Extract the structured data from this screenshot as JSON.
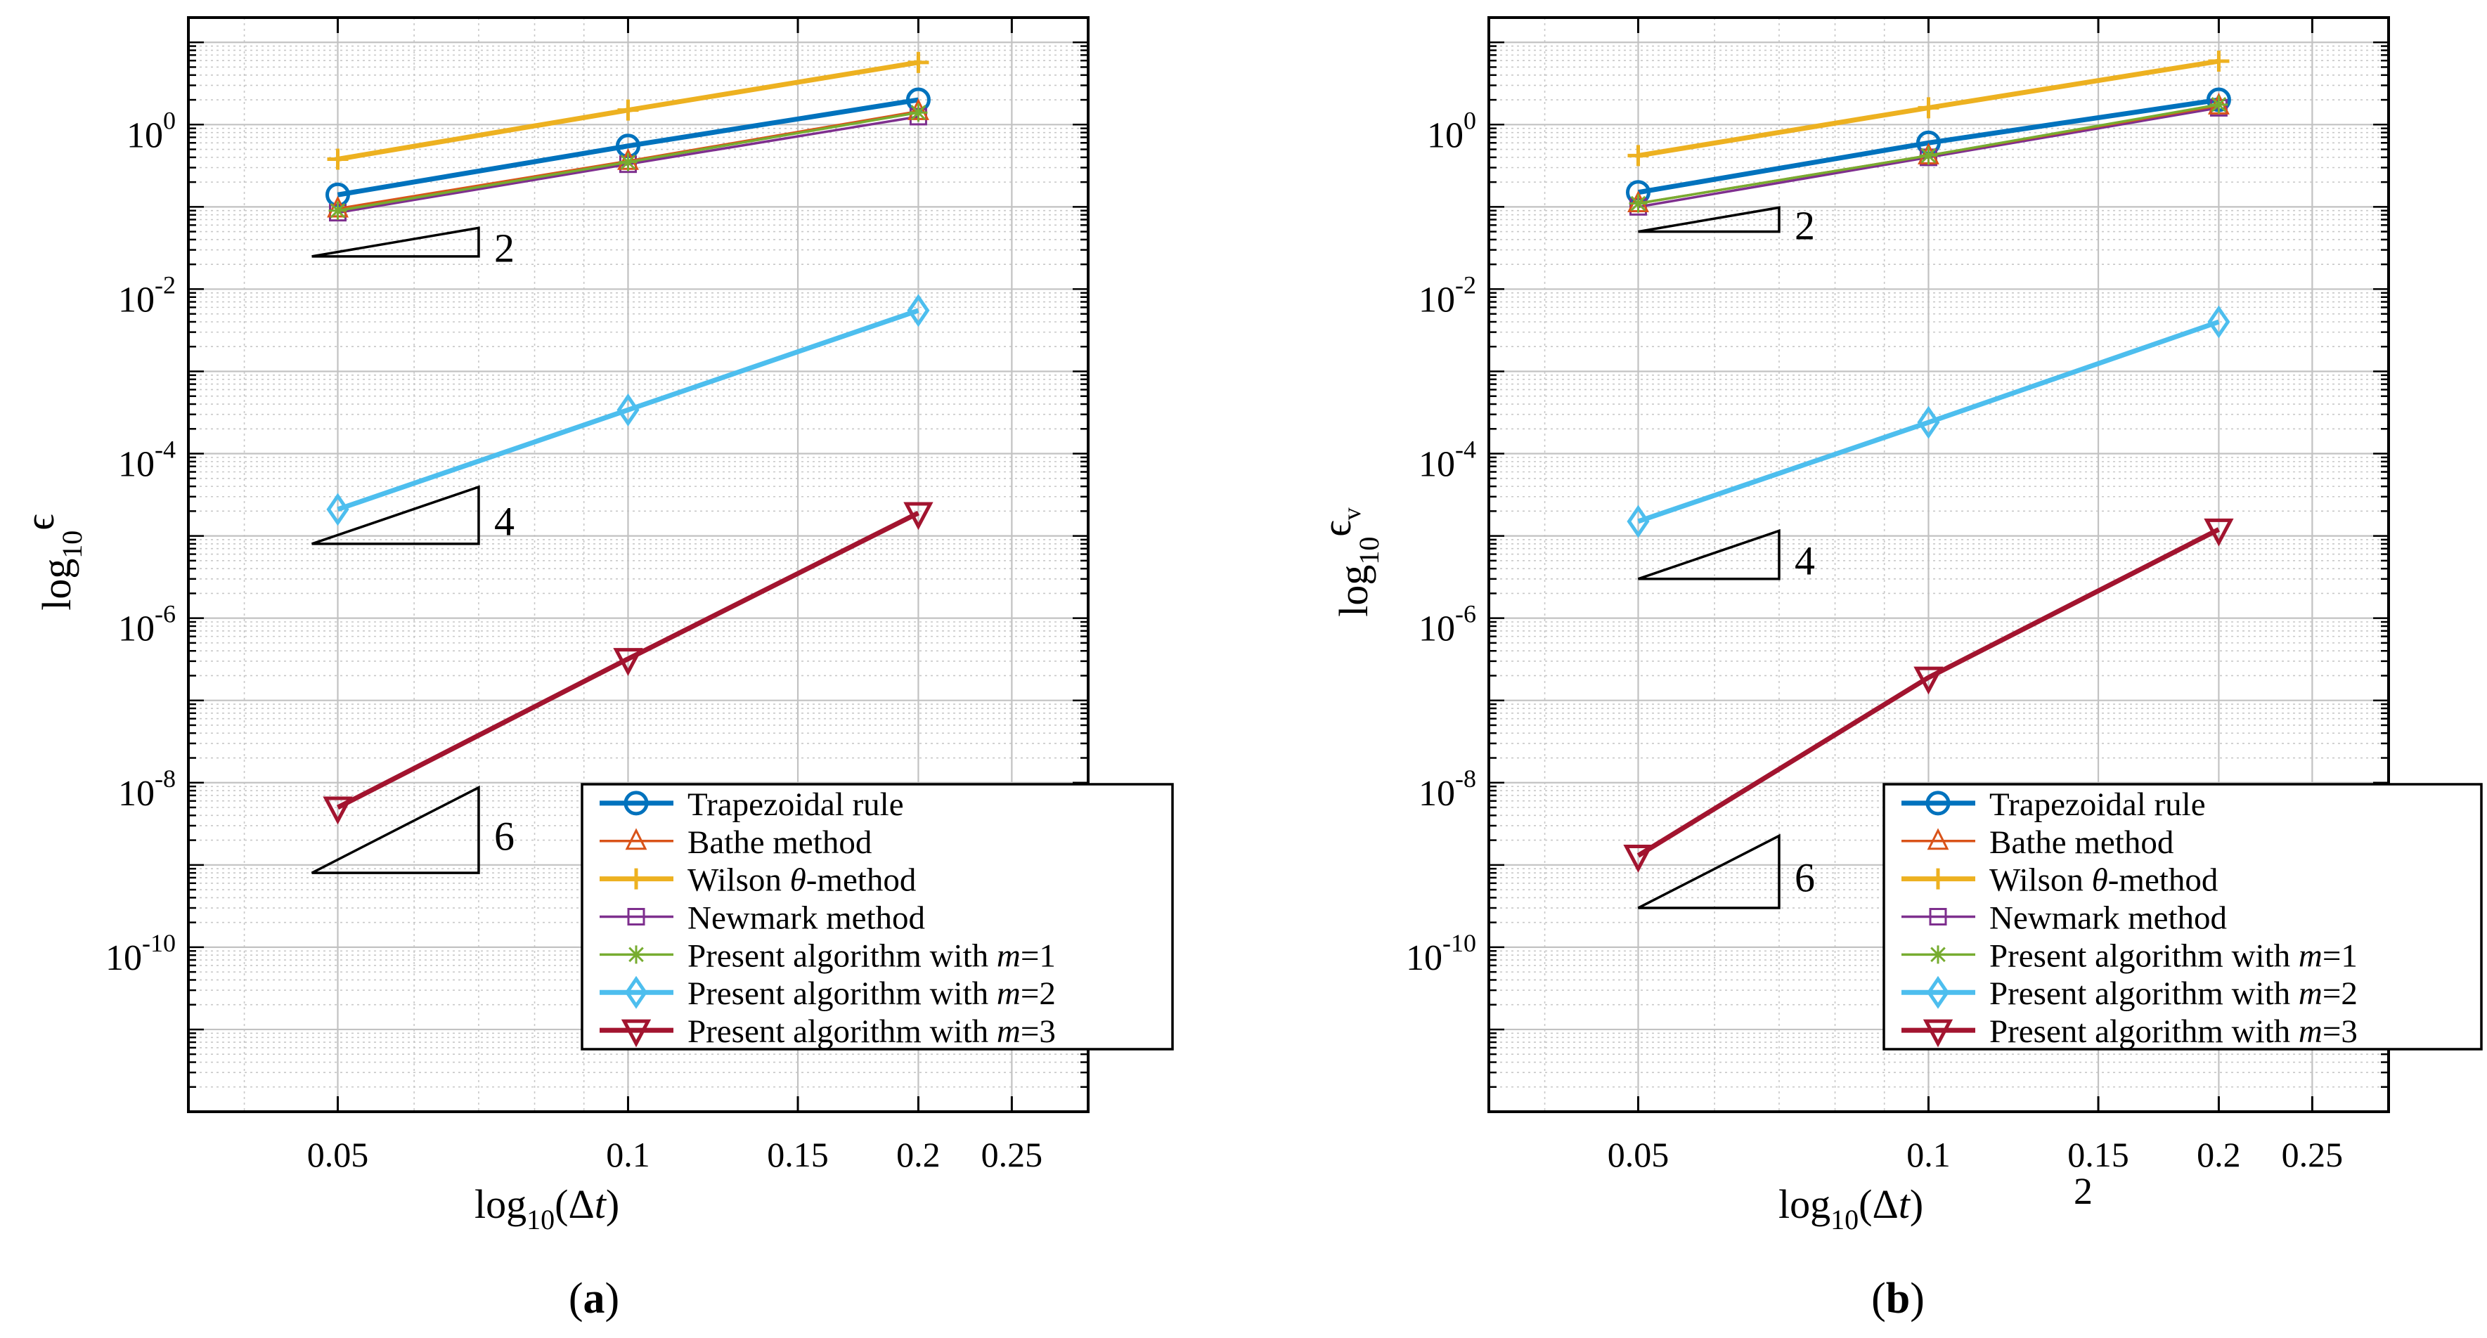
{
  "chart_data": [
    {
      "type": "line",
      "panel_label": "(a)",
      "panel_label_parts": [
        "(",
        "a",
        ")"
      ],
      "xlabel": "log10(Δt)",
      "xlabel_parts": [
        "log",
        "10",
        "(Δ",
        "t",
        ")"
      ],
      "ylabel": "log10ϵ",
      "ylabel_parts": [
        "log",
        "10",
        "ϵ",
        ""
      ],
      "x_scale": "log",
      "y_scale": "log",
      "xlim": [
        0.035,
        0.3
      ],
      "ylim": [
        1e-12,
        20
      ],
      "x_ticks": [
        0.05,
        0.1,
        0.15,
        0.2,
        0.25
      ],
      "x_tick_labels": [
        "0.05",
        "0.1",
        "0.15",
        "0.2",
        "0.25"
      ],
      "y_ticks": [
        {
          "value": 1,
          "base": "10",
          "exp": "0"
        },
        {
          "value": 0.01,
          "base": "10",
          "exp": "-2"
        },
        {
          "value": 0.0001,
          "base": "10",
          "exp": "-4"
        },
        {
          "value": 1e-06,
          "base": "10",
          "exp": "-6"
        },
        {
          "value": 1e-08,
          "base": "10",
          "exp": "-8"
        },
        {
          "value": 1e-10,
          "base": "10",
          "exp": "-10"
        }
      ],
      "grid": true,
      "x": [
        0.05,
        0.1,
        0.2
      ],
      "series": [
        {
          "name": "Trapezoidal rule",
          "values": [
            0.14,
            0.55,
            2.0
          ],
          "color": "#0072BD",
          "marker": "circle",
          "width": "thick"
        },
        {
          "name": "Bathe method",
          "values": [
            0.095,
            0.36,
            1.45
          ],
          "color": "#D95319",
          "marker": "triangle",
          "width": "thin"
        },
        {
          "name": "Wilson θ-method",
          "values": [
            0.38,
            1.5,
            5.7
          ],
          "color": "#EDB120",
          "marker": "plus",
          "width": "thick"
        },
        {
          "name": "Newmark method",
          "values": [
            0.085,
            0.33,
            1.25
          ],
          "color": "#7E2F8E",
          "marker": "square",
          "width": "thin"
        },
        {
          "name": "Present algorithm with m=1",
          "values": [
            0.09,
            0.35,
            1.4
          ],
          "color": "#77AC30",
          "marker": "asterisk",
          "width": "thin"
        },
        {
          "name": "Present algorithm with m=2",
          "values": [
            2.1e-05,
            0.00034,
            0.0055
          ],
          "color": "#4DBEEE",
          "marker": "diamond",
          "width": "thick"
        },
        {
          "name": "Present algorithm with m=3",
          "values": [
            5e-09,
            3.2e-07,
            1.9e-05
          ],
          "color": "#A2142F",
          "marker": "triangle-down",
          "width": "thick"
        }
      ],
      "legend": {
        "position": "bottom-right",
        "entries": [
          {
            "prefix": "Trapezoidal rule",
            "var": "",
            "suffix": ""
          },
          {
            "prefix": "Bathe method",
            "var": "",
            "suffix": ""
          },
          {
            "prefix": "Wilson  ",
            "var": "θ",
            "suffix": "-method"
          },
          {
            "prefix": "Newmark method",
            "var": "",
            "suffix": ""
          },
          {
            "prefix": "Present algorithm with ",
            "var": "m",
            "suffix": "=1"
          },
          {
            "prefix": "Present algorithm with ",
            "var": "m",
            "suffix": "=2"
          },
          {
            "prefix": "Present algorithm with ",
            "var": "m",
            "suffix": "=3"
          }
        ]
      },
      "slope_triangles": [
        {
          "label": "2",
          "x0": 0.047,
          "x1": 0.07,
          "y0": 0.025
        },
        {
          "label": "4",
          "x0": 0.047,
          "x1": 0.07,
          "y0": 8e-06
        },
        {
          "label": "6",
          "x0": 0.047,
          "x1": 0.07,
          "y0": 8e-10
        }
      ],
      "stray_labels": []
    },
    {
      "type": "line",
      "panel_label": "(b)",
      "panel_label_parts": [
        "(",
        "b",
        ")"
      ],
      "xlabel": "log10(Δt)",
      "xlabel_parts": [
        "log",
        "10",
        "(Δ",
        "t",
        ")"
      ],
      "ylabel": "log10ϵv",
      "ylabel_parts": [
        "log",
        "10",
        "ϵ",
        "v"
      ],
      "x_scale": "log",
      "y_scale": "log",
      "xlim": [
        0.035,
        0.3
      ],
      "ylim": [
        1e-12,
        20
      ],
      "x_ticks": [
        0.05,
        0.1,
        0.15,
        0.2,
        0.25
      ],
      "x_tick_labels": [
        "0.05",
        "0.1",
        "0.15",
        "0.2",
        "0.25"
      ],
      "y_ticks": [
        {
          "value": 1,
          "base": "10",
          "exp": "0"
        },
        {
          "value": 0.01,
          "base": "10",
          "exp": "-2"
        },
        {
          "value": 0.0001,
          "base": "10",
          "exp": "-4"
        },
        {
          "value": 1e-06,
          "base": "10",
          "exp": "-6"
        },
        {
          "value": 1e-08,
          "base": "10",
          "exp": "-8"
        },
        {
          "value": 1e-10,
          "base": "10",
          "exp": "-10"
        }
      ],
      "grid": true,
      "x": [
        0.05,
        0.1,
        0.2
      ],
      "series": [
        {
          "name": "Trapezoidal rule",
          "values": [
            0.15,
            0.6,
            2.0
          ],
          "color": "#0072BD",
          "marker": "circle",
          "width": "thick"
        },
        {
          "name": "Bathe method",
          "values": [
            0.11,
            0.42,
            1.7
          ],
          "color": "#D95319",
          "marker": "triangle",
          "width": "thin"
        },
        {
          "name": "Wilson θ-method",
          "values": [
            0.42,
            1.6,
            5.9
          ],
          "color": "#EDB120",
          "marker": "plus",
          "width": "thick"
        },
        {
          "name": "Newmark method",
          "values": [
            0.1,
            0.4,
            1.6
          ],
          "color": "#7E2F8E",
          "marker": "square",
          "width": "thin"
        },
        {
          "name": "Present algorithm with m=1",
          "values": [
            0.11,
            0.42,
            1.75
          ],
          "color": "#77AC30",
          "marker": "asterisk",
          "width": "thin"
        },
        {
          "name": "Present algorithm with m=2",
          "values": [
            1.5e-05,
            0.00024,
            0.004
          ],
          "color": "#4DBEEE",
          "marker": "diamond",
          "width": "thick"
        },
        {
          "name": "Present algorithm with m=3",
          "values": [
            1.3e-09,
            1.9e-07,
            1.2e-05
          ],
          "color": "#A2142F",
          "marker": "triangle-down",
          "width": "thick"
        }
      ],
      "legend": {
        "position": "bottom-right",
        "entries": [
          {
            "prefix": "Trapezoidal rule",
            "var": "",
            "suffix": ""
          },
          {
            "prefix": "Bathe method",
            "var": "",
            "suffix": ""
          },
          {
            "prefix": "Wilson  ",
            "var": "θ",
            "suffix": "-method"
          },
          {
            "prefix": "Newmark method",
            "var": "",
            "suffix": ""
          },
          {
            "prefix": "Present algorithm with ",
            "var": "m",
            "suffix": "=1"
          },
          {
            "prefix": "Present algorithm with ",
            "var": "m",
            "suffix": "=2"
          },
          {
            "prefix": "Present algorithm with ",
            "var": "m",
            "suffix": "=3"
          }
        ]
      },
      "slope_triangles": [
        {
          "label": "2",
          "x0": 0.05,
          "x1": 0.07,
          "y0": 0.05
        },
        {
          "label": "4",
          "x0": 0.05,
          "x1": 0.07,
          "y0": 3e-06
        },
        {
          "label": "6",
          "x0": 0.05,
          "x1": 0.07,
          "y0": 3e-10
        }
      ],
      "stray_labels": [
        {
          "text": "2",
          "anchor": "after-xlabel"
        }
      ]
    }
  ]
}
